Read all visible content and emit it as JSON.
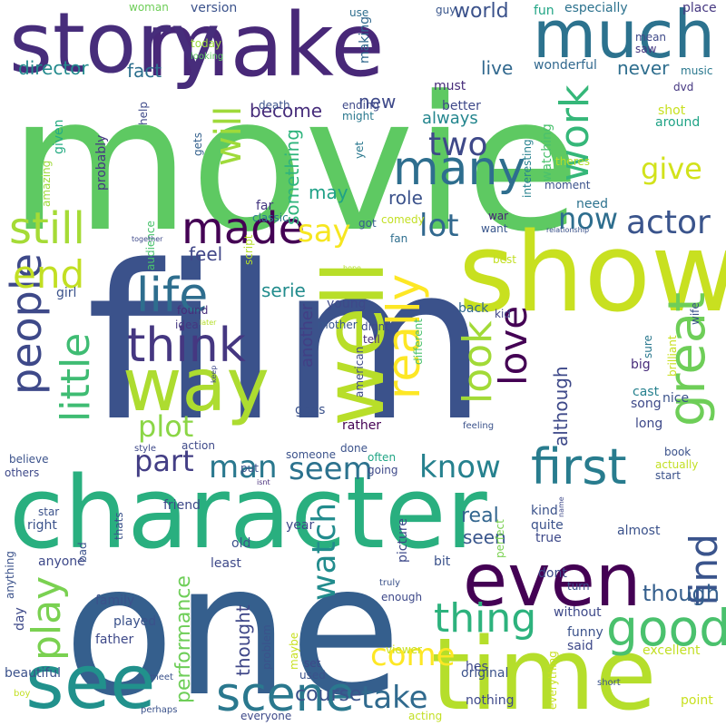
{
  "word_cloud": {
    "words": [
      {
        "text": "movie",
        "color": "#5ec962"
      },
      {
        "text": "film",
        "color": "#3b528b"
      },
      {
        "text": "one",
        "color": "#355f8d"
      },
      {
        "text": "character",
        "color": "#29af7f"
      },
      {
        "text": "show",
        "color": "#c8e020"
      },
      {
        "text": "time",
        "color": "#b5de2b"
      },
      {
        "text": "make",
        "color": "#482878"
      },
      {
        "text": "story",
        "color": "#472d7b"
      },
      {
        "text": "much",
        "color": "#2c728e"
      },
      {
        "text": "well",
        "color": "#b8de29"
      },
      {
        "text": "see",
        "color": "#21918c"
      },
      {
        "text": "even",
        "color": "#440154"
      },
      {
        "text": "way",
        "color": "#addc30"
      },
      {
        "text": "good",
        "color": "#4ac16d"
      },
      {
        "text": "scene",
        "color": "#2a788e"
      },
      {
        "text": "first",
        "color": "#287c8e"
      },
      {
        "text": "many",
        "color": "#2e6e8e"
      },
      {
        "text": "made",
        "color": "#440154"
      },
      {
        "text": "think",
        "color": "#453781"
      },
      {
        "text": "great",
        "color": "#6ece58"
      },
      {
        "text": "life",
        "color": "#2e6e8e"
      },
      {
        "text": "people",
        "color": "#3e4989"
      },
      {
        "text": "little",
        "color": "#3fbc73"
      },
      {
        "text": "really",
        "color": "#fde725"
      },
      {
        "text": "work",
        "color": "#35b779"
      },
      {
        "text": "love",
        "color": "#440154"
      },
      {
        "text": "look",
        "color": "#a2da37"
      },
      {
        "text": "still",
        "color": "#a5db36"
      },
      {
        "text": "end",
        "color": "#c2df23"
      },
      {
        "text": "two",
        "color": "#3e4989"
      },
      {
        "text": "will",
        "color": "#9fda3a"
      },
      {
        "text": "give",
        "color": "#d2e21b"
      },
      {
        "text": "thing",
        "color": "#2db27d"
      },
      {
        "text": "play",
        "color": "#7ad151"
      },
      {
        "text": "take",
        "color": "#306a8e"
      },
      {
        "text": "watch",
        "color": "#228c8d"
      },
      {
        "text": "know",
        "color": "#26818e"
      },
      {
        "text": "man",
        "color": "#2a788e"
      },
      {
        "text": "part",
        "color": "#433e85"
      },
      {
        "text": "plot",
        "color": "#8bd646"
      },
      {
        "text": "seem",
        "color": "#2c728e"
      },
      {
        "text": "find",
        "color": "#3a548c"
      },
      {
        "text": "actor",
        "color": "#3a548c"
      },
      {
        "text": "come",
        "color": "#fde725"
      },
      {
        "text": "now",
        "color": "#2e6e8e"
      },
      {
        "text": "say",
        "color": "#f6e620"
      },
      {
        "text": "lot",
        "color": "#31688e"
      },
      {
        "text": "performance",
        "color": "#6ece58"
      },
      {
        "text": "course",
        "color": "#3b528b"
      },
      {
        "text": "thought",
        "color": "#3f4788"
      },
      {
        "text": "though",
        "color": "#355f8d"
      },
      {
        "text": "although",
        "color": "#3e4989"
      },
      {
        "text": "something",
        "color": "#2fb47c"
      },
      {
        "text": "world",
        "color": "#3b528b"
      },
      {
        "text": "director",
        "color": "#238a8d"
      },
      {
        "text": "fact",
        "color": "#2d708e"
      },
      {
        "text": "become",
        "color": "#472d7b"
      },
      {
        "text": "live",
        "color": "#31688e"
      },
      {
        "text": "new",
        "color": "#3e4989"
      },
      {
        "text": "always",
        "color": "#24868e"
      },
      {
        "text": "role",
        "color": "#3b528b"
      },
      {
        "text": "may",
        "color": "#1fa187"
      },
      {
        "text": "feel",
        "color": "#404688"
      },
      {
        "text": "serie",
        "color": "#228c8d"
      },
      {
        "text": "another",
        "color": "#423f85"
      },
      {
        "text": "real",
        "color": "#32658e"
      },
      {
        "text": "seen",
        "color": "#39568c"
      },
      {
        "text": "never",
        "color": "#2e6e8e"
      },
      {
        "text": "wonderful",
        "color": "#31688e"
      },
      {
        "text": "fun",
        "color": "#21a585"
      },
      {
        "text": "especially",
        "color": "#2c728e"
      },
      {
        "text": "place",
        "color": "#453781"
      },
      {
        "text": "mean",
        "color": "#3e4989"
      },
      {
        "text": "saw",
        "color": "#453882"
      },
      {
        "text": "music",
        "color": "#2a788e"
      },
      {
        "text": "dvd",
        "color": "#453781"
      },
      {
        "text": "shot",
        "color": "#c8e020"
      },
      {
        "text": "around",
        "color": "#20a386"
      },
      {
        "text": "moment",
        "color": "#3b528b"
      },
      {
        "text": "interesting",
        "color": "#26818e"
      },
      {
        "text": "watching",
        "color": "#4ac16d"
      },
      {
        "text": "need",
        "color": "#2c728e"
      },
      {
        "text": "want",
        "color": "#39568c"
      },
      {
        "text": "war",
        "color": "#482576"
      },
      {
        "text": "theres",
        "color": "#b5de2b"
      },
      {
        "text": "yet",
        "color": "#2a788e"
      },
      {
        "text": "better",
        "color": "#3e4989"
      },
      {
        "text": "must",
        "color": "#472c7a"
      },
      {
        "text": "guy",
        "color": "#39568c"
      },
      {
        "text": "making",
        "color": "#31688e"
      },
      {
        "text": "use",
        "color": "#2e6e8e"
      },
      {
        "text": "version",
        "color": "#3b528b"
      },
      {
        "text": "woman",
        "color": "#6ece58"
      },
      {
        "text": "today",
        "color": "#9bd93c"
      },
      {
        "text": "looking",
        "color": "#5ec962"
      },
      {
        "text": "ending",
        "color": "#3e4989"
      },
      {
        "text": "might",
        "color": "#2a788e"
      },
      {
        "text": "death",
        "color": "#3b528b"
      },
      {
        "text": "help",
        "color": "#3e4989"
      },
      {
        "text": "gets",
        "color": "#34618d"
      },
      {
        "text": "given",
        "color": "#25ab82"
      },
      {
        "text": "amazing",
        "color": "#9fda3a"
      },
      {
        "text": "probably",
        "color": "#453781"
      },
      {
        "text": "audience",
        "color": "#4ac16d"
      },
      {
        "text": "together",
        "color": "#3e4989"
      },
      {
        "text": "got",
        "color": "#365d8d"
      },
      {
        "text": "far",
        "color": "#453781"
      },
      {
        "text": "classic",
        "color": "#2a788e"
      },
      {
        "text": "comedy",
        "color": "#c2df23"
      },
      {
        "text": "script",
        "color": "#b5de2b"
      },
      {
        "text": "fan",
        "color": "#2e6e8e"
      },
      {
        "text": "relationship",
        "color": "#3b528b"
      },
      {
        "text": "hope",
        "color": "#b5de2b"
      },
      {
        "text": "best",
        "color": "#c2df23"
      },
      {
        "text": "girl",
        "color": "#3b528b"
      },
      {
        "text": "young",
        "color": "#3e4989"
      },
      {
        "text": "kid",
        "color": "#404588"
      },
      {
        "text": "back",
        "color": "#31688e"
      },
      {
        "text": "found",
        "color": "#472d7b"
      },
      {
        "text": "idea",
        "color": "#453781"
      },
      {
        "text": "mother",
        "color": "#39568c"
      },
      {
        "text": "didnt",
        "color": "#3e4989"
      },
      {
        "text": "tell",
        "color": "#472c7a"
      },
      {
        "text": "later",
        "color": "#b5de2b"
      },
      {
        "text": "american",
        "color": "#3e4989"
      },
      {
        "text": "different",
        "color": "#4ac16d"
      },
      {
        "text": "big",
        "color": "#472c7a"
      },
      {
        "text": "brilliant",
        "color": "#c8e020"
      },
      {
        "text": "sure",
        "color": "#2a788e"
      },
      {
        "text": "wife",
        "color": "#3b528b"
      },
      {
        "text": "nice",
        "color": "#3b528b"
      },
      {
        "text": "cast",
        "color": "#26818e"
      },
      {
        "text": "song",
        "color": "#3e4989"
      },
      {
        "text": "long",
        "color": "#3e4989"
      },
      {
        "text": "goes",
        "color": "#3b528b"
      },
      {
        "text": "rather",
        "color": "#440154"
      },
      {
        "text": "keep",
        "color": "#3e4989"
      },
      {
        "text": "feeling",
        "color": "#3b528b"
      },
      {
        "text": "style",
        "color": "#3e4989"
      },
      {
        "text": "action",
        "color": "#3e4989"
      },
      {
        "text": "someone",
        "color": "#3b528b"
      },
      {
        "text": "done",
        "color": "#3b528b"
      },
      {
        "text": "often",
        "color": "#21a585"
      },
      {
        "text": "going",
        "color": "#3e4989"
      },
      {
        "text": "put",
        "color": "#3b528b"
      },
      {
        "text": "believe",
        "color": "#3b528b"
      },
      {
        "text": "others",
        "color": "#3e4989"
      },
      {
        "text": "isnt",
        "color": "#472d7b"
      },
      {
        "text": "book",
        "color": "#3b528b"
      },
      {
        "text": "actually",
        "color": "#c2df23"
      },
      {
        "text": "start",
        "color": "#3b528b"
      },
      {
        "text": "kind",
        "color": "#3b528b"
      },
      {
        "text": "name",
        "color": "#3e4989"
      },
      {
        "text": "star",
        "color": "#3b528b"
      },
      {
        "text": "friend",
        "color": "#3e4989"
      },
      {
        "text": "right",
        "color": "#3b528b"
      },
      {
        "text": "thats",
        "color": "#3b528b"
      },
      {
        "text": "year",
        "color": "#3e4989"
      },
      {
        "text": "bad",
        "color": "#3b528b"
      },
      {
        "text": "picture",
        "color": "#3e4989"
      },
      {
        "text": "perfect",
        "color": "#7ad151"
      },
      {
        "text": "quite",
        "color": "#3b528b"
      },
      {
        "text": "true",
        "color": "#3e4989"
      },
      {
        "text": "almost",
        "color": "#3b528b"
      },
      {
        "text": "anything",
        "color": "#3b528b"
      },
      {
        "text": "anyone",
        "color": "#3e4989"
      },
      {
        "text": "old",
        "color": "#3b528b"
      },
      {
        "text": "least",
        "color": "#3e4989"
      },
      {
        "text": "bit",
        "color": "#3b528b"
      },
      {
        "text": "dont",
        "color": "#3e4989"
      },
      {
        "text": "truly",
        "color": "#3b528b"
      },
      {
        "text": "enough",
        "color": "#3e4989"
      },
      {
        "text": "turn",
        "color": "#3b528b"
      },
      {
        "text": "without",
        "color": "#3e4989"
      },
      {
        "text": "family",
        "color": "#3b528b"
      },
      {
        "text": "day",
        "color": "#3e4989"
      },
      {
        "text": "played",
        "color": "#3b528b"
      },
      {
        "text": "father",
        "color": "#3e4989"
      },
      {
        "text": "problem",
        "color": "#3b528b"
      },
      {
        "text": "maybe",
        "color": "#c8e020"
      },
      {
        "text": "funny",
        "color": "#3b528b"
      },
      {
        "text": "said",
        "color": "#3e4989"
      },
      {
        "text": "viewer",
        "color": "#c8e020"
      },
      {
        "text": "excellent",
        "color": "#c2df23"
      },
      {
        "text": "beautiful",
        "color": "#3b528b"
      },
      {
        "text": "set",
        "color": "#3e4989"
      },
      {
        "text": "used",
        "color": "#3b528b"
      },
      {
        "text": "hes",
        "color": "#3e4989"
      },
      {
        "text": "original",
        "color": "#3b528b"
      },
      {
        "text": "everything",
        "color": "#c8e020"
      },
      {
        "text": "boy",
        "color": "#c2df23"
      },
      {
        "text": "meet",
        "color": "#3b528b"
      },
      {
        "text": "nothing",
        "color": "#3e4989"
      },
      {
        "text": "short",
        "color": "#3b528b"
      },
      {
        "text": "point",
        "color": "#c8e020"
      },
      {
        "text": "perhaps",
        "color": "#3b528b"
      },
      {
        "text": "everyone",
        "color": "#3e4989"
      },
      {
        "text": "acting",
        "color": "#c2df23"
      }
    ]
  }
}
